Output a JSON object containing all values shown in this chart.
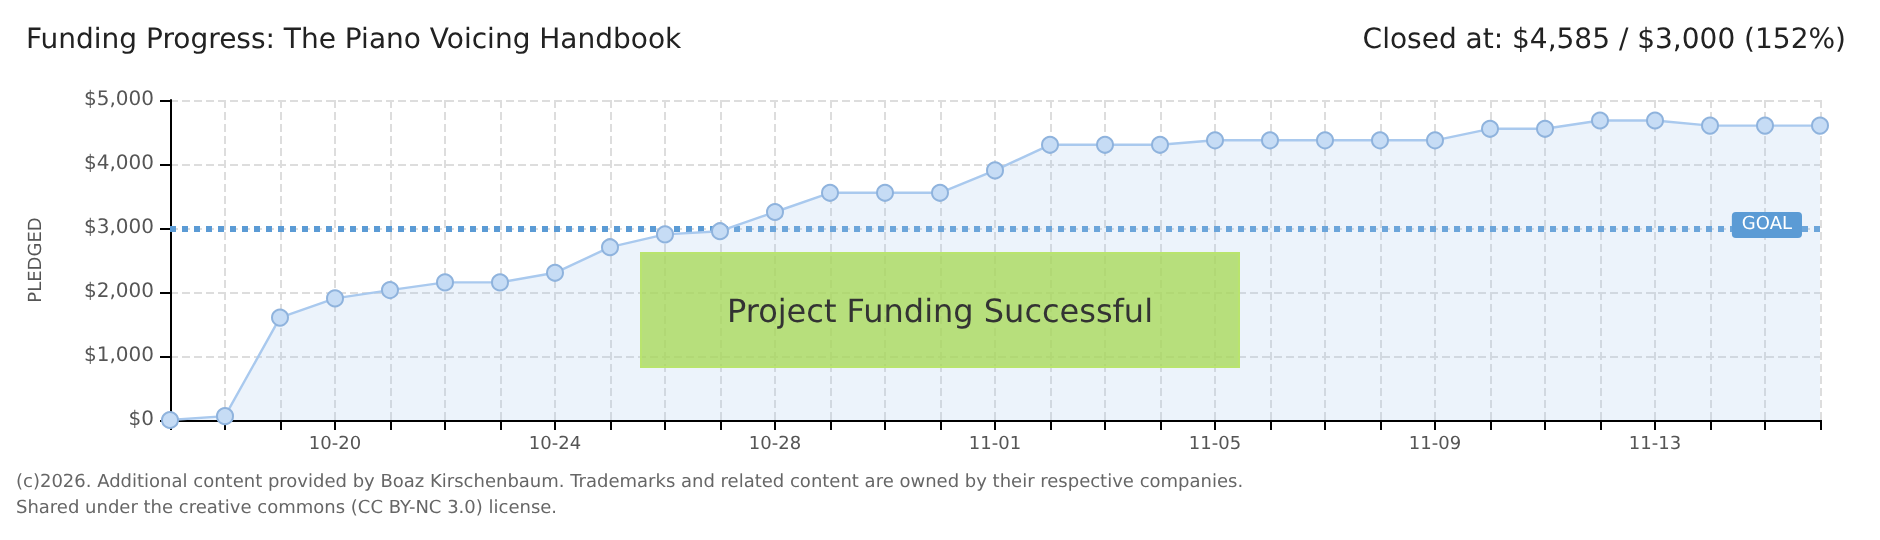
{
  "chart_data": {
    "type": "area",
    "title": "Funding Progress: The Piano Voicing Handbook",
    "subtitle": "Closed at: $4,585 / $3,000 (152%)",
    "ylabel": "PLEDGED",
    "categories": [
      null,
      null,
      null,
      "10-20",
      null,
      null,
      null,
      "10-24",
      null,
      null,
      null,
      "10-28",
      null,
      null,
      null,
      "11-01",
      null,
      null,
      null,
      "11-05",
      null,
      null,
      null,
      "11-09",
      null,
      null,
      null,
      "11-13",
      null,
      null,
      null
    ],
    "series": [
      {
        "color": "#a9c9ee",
        "values": [
          0,
          60,
          1600,
          1900,
          2030,
          2150,
          2150,
          2300,
          2700,
          2900,
          2950,
          3250,
          3550,
          3550,
          3550,
          3900,
          4300,
          4300,
          4300,
          4370,
          4370,
          4370,
          4370,
          4370,
          4550,
          4550,
          4680,
          4680,
          4600,
          4600,
          4600
        ]
      }
    ],
    "ylim": [
      0,
      5000
    ],
    "yticks": [
      {
        "value": 0,
        "label": "$0"
      },
      {
        "value": 1000,
        "label": "$1,000"
      },
      {
        "value": 2000,
        "label": "$2,000"
      },
      {
        "value": 3000,
        "label": "$3,000"
      },
      {
        "value": 4000,
        "label": "$4,000"
      },
      {
        "value": 5000,
        "label": "$5,000"
      }
    ],
    "grid": true,
    "marker": "circle",
    "ref_lines": [
      {
        "axis": "y",
        "value": 3000,
        "label": "GOAL",
        "color": "#5b9bd5",
        "line_style": "dotted"
      }
    ],
    "annotations": [
      "Project Funding Successful",
      "(c)2026. Additional content provided by Boaz Kirschenbaum. Trademarks and related content are owned by their respective companies.",
      "Shared under the creative commons (CC BY-NC 3.0) license."
    ]
  }
}
